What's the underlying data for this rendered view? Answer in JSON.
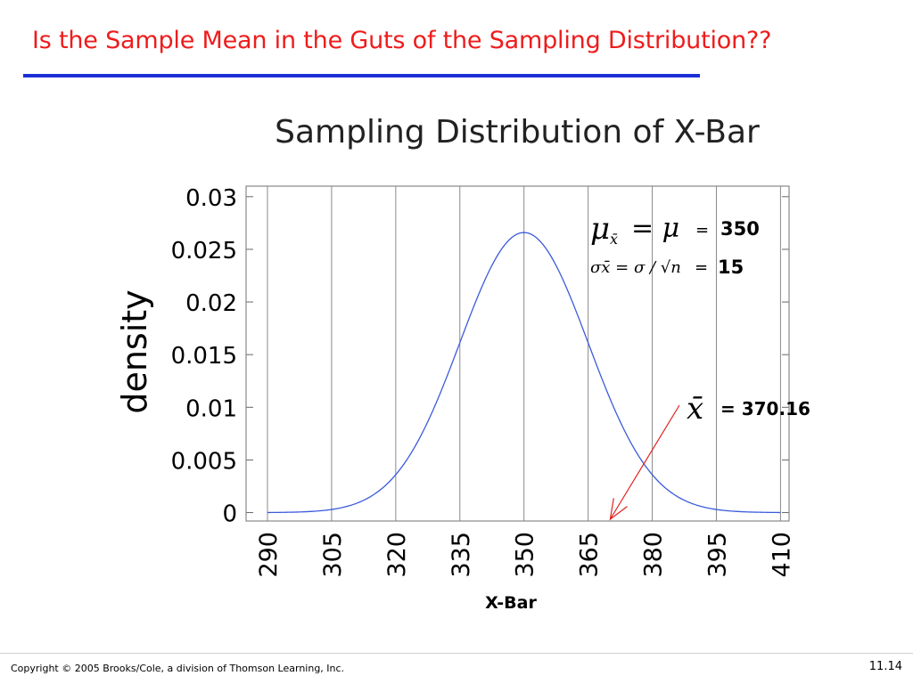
{
  "slide": {
    "title": "Is the Sample Mean in the Guts of the Sampling Distribution??",
    "copyright": "Copyright © 2005 Brooks/Cole, a division of Thomson Learning, Inc.",
    "page_number": "11.14",
    "title_color": "#ee1c1c",
    "rule_color": "#1a2fd6"
  },
  "chart_data": {
    "type": "line",
    "title": "Sampling Distribution of X-Bar",
    "xlabel": "X-Bar",
    "ylabel": "density",
    "xlim": [
      285,
      412
    ],
    "ylim": [
      -0.0008,
      0.031
    ],
    "x_ticks": [
      "290",
      "305",
      "320",
      "335",
      "350",
      "365",
      "380",
      "395",
      "410"
    ],
    "y_ticks": [
      "0.03",
      "0.025",
      "0.02",
      "0.015",
      "0.01",
      "0.005",
      "0"
    ],
    "vertical_grid": true,
    "series": [
      {
        "distribution": "normal",
        "mean": 350,
        "sd": 15,
        "x_range": [
          290,
          410
        ],
        "color": "#3b5bdb"
      }
    ],
    "annotations": {
      "mean_formula": {
        "lhs": "μ",
        "sub": "x̄",
        "mid": "= μ",
        "eq": "=",
        "value": "350"
      },
      "sd_formula": {
        "text": "σx̄ = σ / √n",
        "eq": "=",
        "value": "15"
      },
      "sample_mean": {
        "symbol": "x̄",
        "label": "= 370.16",
        "x_value": 370.16,
        "arrow_color": "#e0201c"
      }
    }
  }
}
